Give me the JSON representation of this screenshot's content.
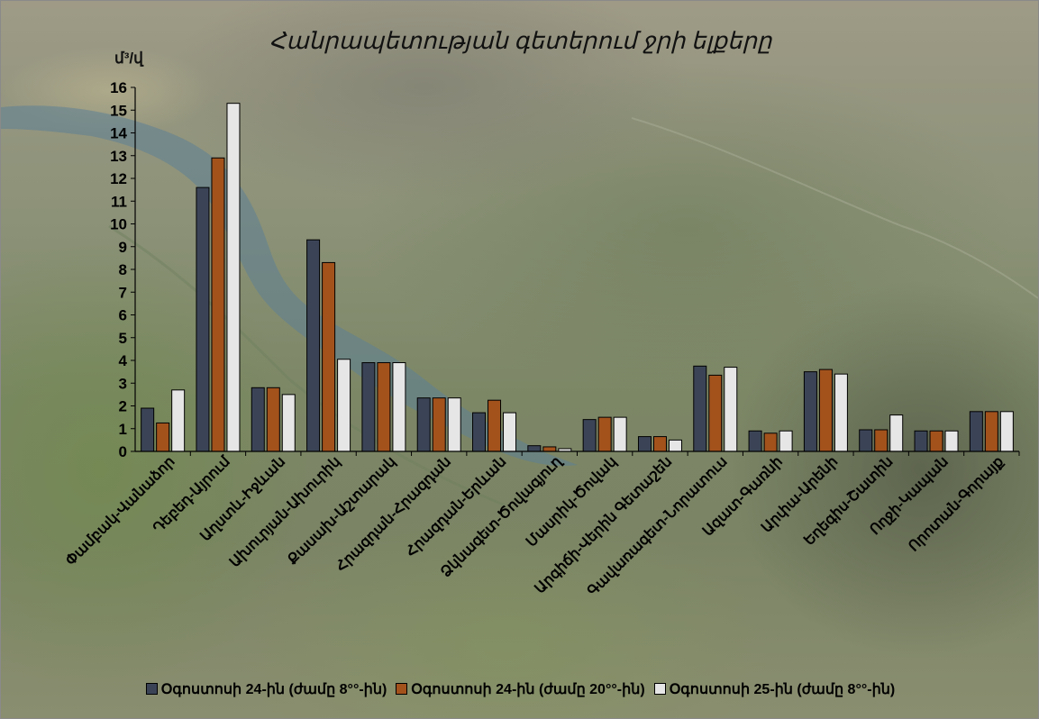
{
  "chart_data": {
    "type": "bar",
    "title": "Հանրապետության գետերում ջրի ելքերը",
    "ylabel": "մ³/վ",
    "xlabel": "",
    "ylim": [
      0,
      16
    ],
    "yticks": [
      0,
      1,
      2,
      3,
      4,
      5,
      6,
      7,
      8,
      9,
      10,
      11,
      12,
      13,
      14,
      15,
      16
    ],
    "grid": false,
    "legend_position": "bottom",
    "categories": [
      "Փամբակ-Վանաձոր",
      "Դեբեդ-Այրում",
      "Աղստև-Իջևան",
      "Ախուրյան-Ախուրիկ",
      "Քասախ-Աշտարակ",
      "Հրազդան-Հրազդան",
      "Հրազդան-Երևան",
      "Ձկնագետ-Ծովագյուղ",
      "Մասրիկ-Ծովակ",
      "Արգիճի-Վերին Գետաշեն",
      "Գավառագետ-Նորատուս",
      "Ազատ-Գառնի",
      "Արփա-Արենի",
      "Եղեգիս-Շատին",
      "Ողջի-Կապան",
      "Որոտան-Գորայք"
    ],
    "series": [
      {
        "name": "Օգոստոսի 24-ին (ժամը 8°°-ին)",
        "color": "#3b4457",
        "values": [
          1.9,
          11.6,
          2.8,
          9.3,
          3.9,
          2.35,
          1.7,
          0.25,
          1.4,
          0.65,
          3.75,
          0.9,
          3.5,
          0.95,
          0.9,
          1.75
        ]
      },
      {
        "name": "Օգոստոսի 24-ին (ժամը 20°°-ին)",
        "color": "#a3521c",
        "values": [
          1.25,
          12.9,
          2.8,
          8.3,
          3.9,
          2.35,
          2.25,
          0.2,
          1.5,
          0.65,
          3.35,
          0.8,
          3.6,
          0.95,
          0.9,
          1.75
        ]
      },
      {
        "name": "Օգոստոսի 25-ին (ժամը 8°°-ին)",
        "color": "#e6e6e6",
        "values": [
          2.7,
          15.3,
          2.5,
          4.05,
          3.9,
          2.35,
          1.7,
          0.12,
          1.5,
          0.5,
          3.7,
          0.9,
          3.4,
          1.6,
          0.9,
          1.75
        ]
      }
    ]
  }
}
